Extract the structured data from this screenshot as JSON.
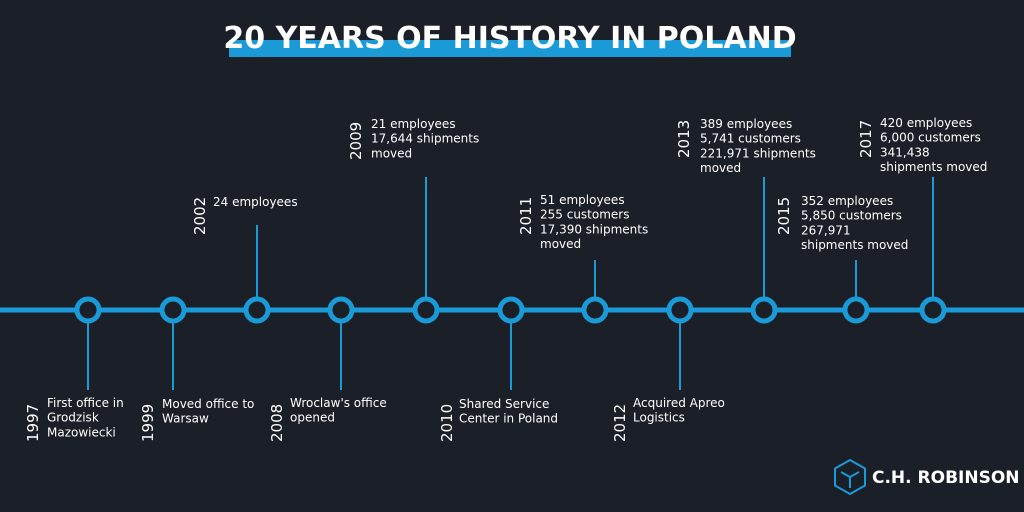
{
  "title": "20 YEARS OF HISTORY IN POLAND",
  "events": [
    {
      "year": "1997",
      "lines": [
        "First office in",
        "Grodzisk",
        "Mazowiecki"
      ]
    },
    {
      "year": "1999",
      "lines": [
        "Moved office to",
        "Warsaw"
      ]
    },
    {
      "year": "2002",
      "lines": [
        "24 employees"
      ]
    },
    {
      "year": "2008",
      "lines": [
        "Wroclaw's office",
        "opened"
      ]
    },
    {
      "year": "2009",
      "lines": [
        "21 employees",
        "17,644 shipments",
        "moved"
      ]
    },
    {
      "year": "2010",
      "lines": [
        "Shared Service",
        "Center in Poland"
      ]
    },
    {
      "year": "2011",
      "lines": [
        "51 employees",
        "255 customers",
        "17,390 shipments",
        "moved"
      ]
    },
    {
      "year": "2012",
      "lines": [
        "Acquired Apreo",
        "Logistics"
      ]
    },
    {
      "year": "2013",
      "lines": [
        "389 employees",
        "5,741 customers",
        "221,971 shipments",
        "moved"
      ]
    },
    {
      "year": "2015",
      "lines": [
        "352 employees",
        "5,850 customers",
        "267,971",
        "shipments moved"
      ]
    },
    {
      "year": "2017",
      "lines": [
        "420 employees",
        "6,000 customers",
        "341,438",
        "shipments moved"
      ]
    }
  ],
  "logo": "C.H. ROBINSON"
}
